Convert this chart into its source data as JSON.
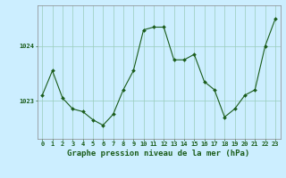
{
  "hours": [
    0,
    1,
    2,
    3,
    4,
    5,
    6,
    7,
    8,
    9,
    10,
    11,
    12,
    13,
    14,
    15,
    16,
    17,
    18,
    19,
    20,
    21,
    22,
    23
  ],
  "pressure": [
    1023.1,
    1023.55,
    1023.05,
    1022.85,
    1022.8,
    1022.65,
    1022.55,
    1022.75,
    1023.2,
    1023.55,
    1024.3,
    1024.35,
    1024.35,
    1023.75,
    1023.75,
    1023.85,
    1023.35,
    1023.2,
    1022.7,
    1022.85,
    1023.1,
    1023.2,
    1024.0,
    1024.5
  ],
  "bg_color": "#cceeff",
  "line_color": "#1a5c1a",
  "marker_color": "#1a5c1a",
  "grid_color": "#99ccbb",
  "axis_label_color": "#1a5c1a",
  "tick_color": "#1a5c1a",
  "xlabel": "Graphe pression niveau de la mer (hPa)",
  "ylim_min": 1022.3,
  "ylim_max": 1024.75,
  "xlim_min": -0.5,
  "xlim_max": 23.5,
  "xlabel_fontsize": 6.5,
  "tick_fontsize": 5.0
}
